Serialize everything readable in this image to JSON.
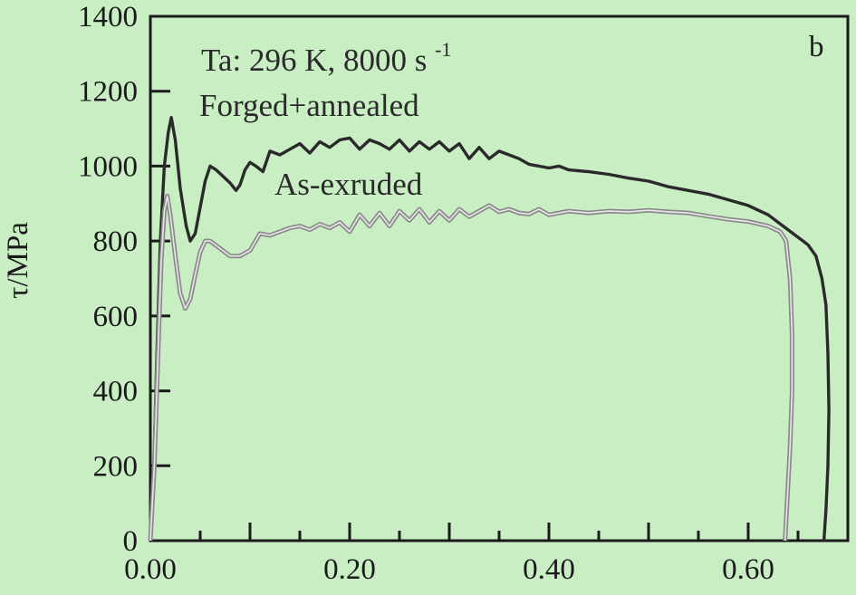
{
  "chart_data": {
    "type": "line",
    "ylabel": "τ/MPa",
    "xlabel": "",
    "xlim": [
      0.0,
      0.7
    ],
    "ylim": [
      0,
      1400
    ],
    "x_ticks": [
      0.0,
      0.2,
      0.4,
      0.6
    ],
    "x_tick_labels": [
      "0.00",
      "0.20",
      "0.40",
      "0.60"
    ],
    "y_ticks": [
      0,
      200,
      400,
      600,
      800,
      1000,
      1200,
      1400
    ],
    "y_tick_labels": [
      "0",
      "200",
      "400",
      "600",
      "800",
      "1000",
      "1200",
      "1400"
    ],
    "grid": false,
    "panel_label": "b",
    "annotations": {
      "condition_prefix": "Ta: 296 K, 8000 s",
      "condition_exponent": "-1",
      "forged": "Forged+annealed",
      "extruded": "As-exruded"
    },
    "colors": {
      "background": "#c9eec4",
      "forged_line": "#2a2a2a",
      "extruded_line": "#8a8a8a"
    },
    "series": [
      {
        "id": "forged",
        "points": [
          [
            0.0,
            0
          ],
          [
            0.003,
            150
          ],
          [
            0.006,
            450
          ],
          [
            0.01,
            800
          ],
          [
            0.014,
            1000
          ],
          [
            0.018,
            1090
          ],
          [
            0.021,
            1130
          ],
          [
            0.025,
            1070
          ],
          [
            0.03,
            940
          ],
          [
            0.036,
            840
          ],
          [
            0.04,
            800
          ],
          [
            0.045,
            820
          ],
          [
            0.05,
            890
          ],
          [
            0.055,
            960
          ],
          [
            0.06,
            1000
          ],
          [
            0.066,
            990
          ],
          [
            0.072,
            975
          ],
          [
            0.08,
            955
          ],
          [
            0.086,
            935
          ],
          [
            0.09,
            950
          ],
          [
            0.095,
            990
          ],
          [
            0.1,
            1010
          ],
          [
            0.106,
            1000
          ],
          [
            0.113,
            985
          ],
          [
            0.12,
            1040
          ],
          [
            0.13,
            1030
          ],
          [
            0.14,
            1045
          ],
          [
            0.15,
            1060
          ],
          [
            0.16,
            1035
          ],
          [
            0.17,
            1065
          ],
          [
            0.18,
            1050
          ],
          [
            0.19,
            1070
          ],
          [
            0.2,
            1075
          ],
          [
            0.21,
            1045
          ],
          [
            0.22,
            1070
          ],
          [
            0.23,
            1060
          ],
          [
            0.24,
            1045
          ],
          [
            0.25,
            1070
          ],
          [
            0.26,
            1040
          ],
          [
            0.27,
            1065
          ],
          [
            0.28,
            1045
          ],
          [
            0.29,
            1065
          ],
          [
            0.3,
            1040
          ],
          [
            0.31,
            1060
          ],
          [
            0.32,
            1020
          ],
          [
            0.33,
            1050
          ],
          [
            0.34,
            1020
          ],
          [
            0.35,
            1040
          ],
          [
            0.36,
            1030
          ],
          [
            0.37,
            1020
          ],
          [
            0.38,
            1005
          ],
          [
            0.39,
            1000
          ],
          [
            0.4,
            995
          ],
          [
            0.41,
            1000
          ],
          [
            0.42,
            990
          ],
          [
            0.44,
            985
          ],
          [
            0.46,
            978
          ],
          [
            0.48,
            968
          ],
          [
            0.5,
            960
          ],
          [
            0.52,
            945
          ],
          [
            0.54,
            935
          ],
          [
            0.56,
            925
          ],
          [
            0.58,
            910
          ],
          [
            0.6,
            895
          ],
          [
            0.62,
            870
          ],
          [
            0.635,
            840
          ],
          [
            0.65,
            810
          ],
          [
            0.66,
            790
          ],
          [
            0.668,
            760
          ],
          [
            0.674,
            700
          ],
          [
            0.678,
            630
          ],
          [
            0.68,
            500
          ],
          [
            0.681,
            350
          ],
          [
            0.68,
            200
          ],
          [
            0.678,
            80
          ],
          [
            0.676,
            0
          ]
        ]
      },
      {
        "id": "extruded",
        "points": [
          [
            0.0,
            0
          ],
          [
            0.004,
            200
          ],
          [
            0.008,
            520
          ],
          [
            0.011,
            750
          ],
          [
            0.014,
            880
          ],
          [
            0.017,
            920
          ],
          [
            0.02,
            870
          ],
          [
            0.025,
            760
          ],
          [
            0.03,
            660
          ],
          [
            0.035,
            620
          ],
          [
            0.04,
            645
          ],
          [
            0.045,
            710
          ],
          [
            0.05,
            770
          ],
          [
            0.055,
            800
          ],
          [
            0.06,
            800
          ],
          [
            0.07,
            780
          ],
          [
            0.08,
            760
          ],
          [
            0.09,
            760
          ],
          [
            0.1,
            775
          ],
          [
            0.11,
            820
          ],
          [
            0.12,
            815
          ],
          [
            0.13,
            825
          ],
          [
            0.14,
            835
          ],
          [
            0.15,
            840
          ],
          [
            0.16,
            830
          ],
          [
            0.17,
            845
          ],
          [
            0.18,
            835
          ],
          [
            0.19,
            850
          ],
          [
            0.2,
            825
          ],
          [
            0.21,
            870
          ],
          [
            0.22,
            840
          ],
          [
            0.23,
            875
          ],
          [
            0.24,
            840
          ],
          [
            0.25,
            880
          ],
          [
            0.26,
            855
          ],
          [
            0.27,
            885
          ],
          [
            0.28,
            850
          ],
          [
            0.29,
            880
          ],
          [
            0.3,
            855
          ],
          [
            0.31,
            885
          ],
          [
            0.32,
            865
          ],
          [
            0.33,
            880
          ],
          [
            0.34,
            895
          ],
          [
            0.35,
            878
          ],
          [
            0.36,
            885
          ],
          [
            0.37,
            875
          ],
          [
            0.38,
            872
          ],
          [
            0.39,
            885
          ],
          [
            0.4,
            870
          ],
          [
            0.42,
            880
          ],
          [
            0.44,
            875
          ],
          [
            0.46,
            880
          ],
          [
            0.48,
            878
          ],
          [
            0.5,
            882
          ],
          [
            0.52,
            878
          ],
          [
            0.54,
            875
          ],
          [
            0.56,
            866
          ],
          [
            0.58,
            858
          ],
          [
            0.6,
            852
          ],
          [
            0.62,
            840
          ],
          [
            0.632,
            825
          ],
          [
            0.638,
            800
          ],
          [
            0.642,
            700
          ],
          [
            0.644,
            550
          ],
          [
            0.644,
            400
          ],
          [
            0.642,
            250
          ],
          [
            0.639,
            100
          ],
          [
            0.637,
            0
          ]
        ]
      }
    ]
  }
}
